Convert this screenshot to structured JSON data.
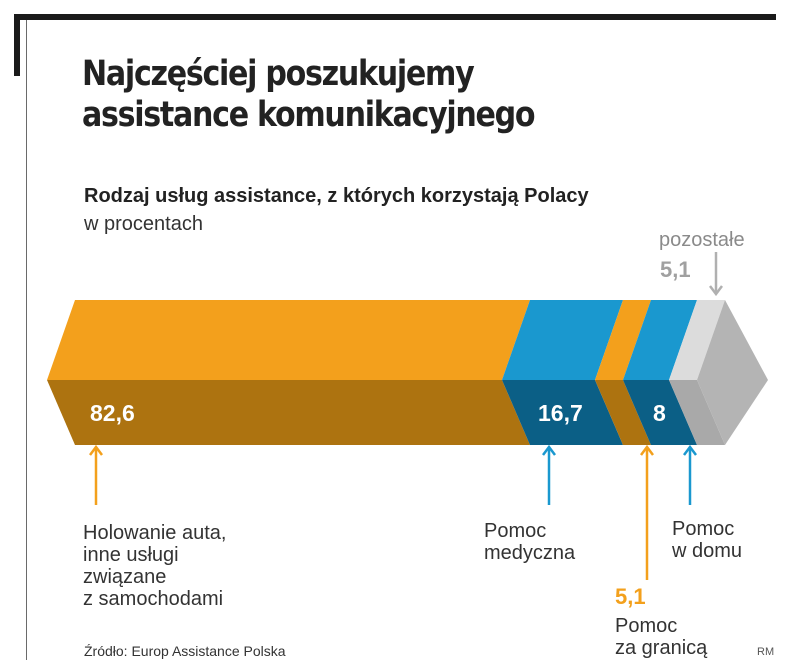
{
  "header": {
    "title_line1": "Najczęściej poszukujemy",
    "title_line2": "assistance komunikacyjnego",
    "subtitle": "Rodzaj usług assistance, z których korzystają Polacy",
    "units": "w procentach"
  },
  "chart_data": {
    "type": "bar",
    "orientation": "horizontal-stacked",
    "unit": "%",
    "title": "Rodzaj usług assistance, z których korzystają Polacy",
    "subtitle": "w procentach",
    "categories": [
      "Holowanie auta, inne usługi związane z samochodami",
      "Pomoc medyczna",
      "Pomoc za granicą",
      "Pomoc w domu",
      "pozostałe"
    ],
    "values": [
      82.6,
      16.7,
      5.1,
      8,
      5.1
    ],
    "value_labels": [
      "82,6",
      "16,7",
      "5,1",
      "8",
      "5,1"
    ],
    "colors": [
      "#f3a01c",
      "#1a98cf",
      "#f3a01c",
      "#1a98cf",
      "#c0c0c0"
    ]
  },
  "labels": {
    "towing": [
      "Holowanie auta,",
      "inne usługi",
      "związane",
      "z samochodami"
    ],
    "medical": [
      "Pomoc",
      "medyczna"
    ],
    "abroad": [
      "Pomoc",
      "za granicą"
    ],
    "home": [
      "Pomoc",
      "w domu"
    ],
    "other": "pozostałe"
  },
  "footer": {
    "source": "Źródło: Europ Assistance Polska",
    "credit": "RM"
  }
}
